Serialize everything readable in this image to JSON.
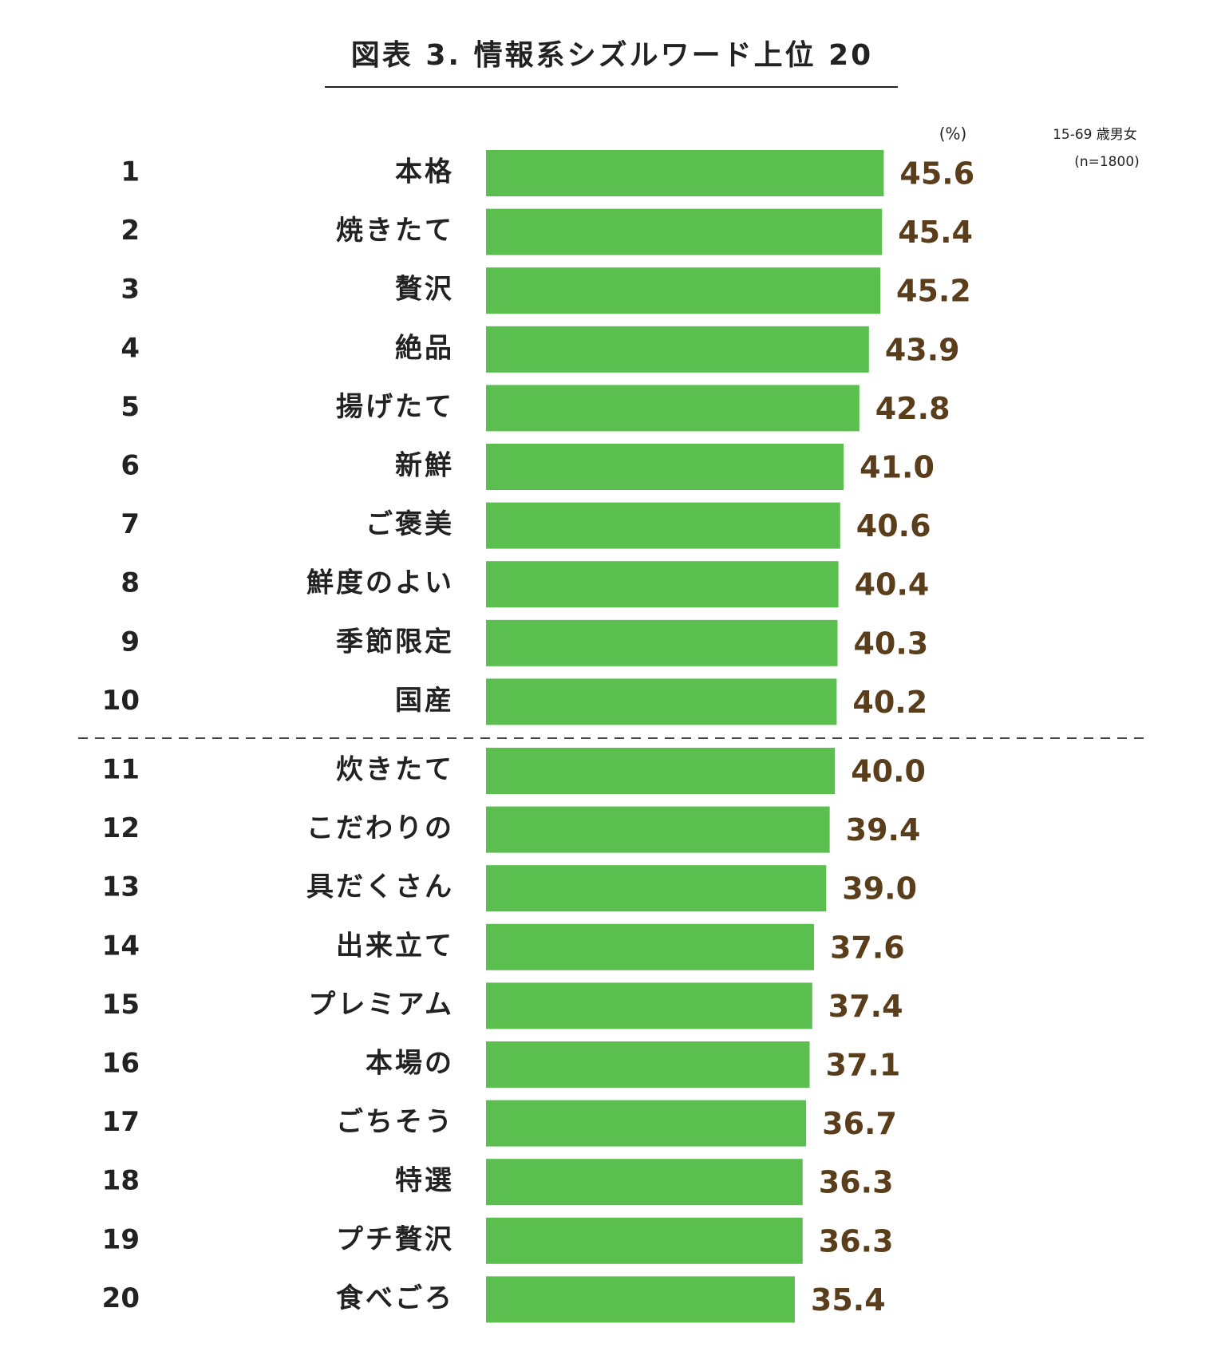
{
  "chart_data": {
    "type": "bar",
    "orientation": "horizontal",
    "title": "図表 3. 情報系シズルワード上位 20",
    "unit": "(%)",
    "notes": [
      "15-69 歳男女",
      "(n=1800)"
    ],
    "ranks": [
      1,
      2,
      3,
      4,
      5,
      6,
      7,
      8,
      9,
      10,
      11,
      12,
      13,
      14,
      15,
      16,
      17,
      18,
      19,
      20
    ],
    "categories": [
      "本格",
      "焼きたて",
      "贅沢",
      "絶品",
      "揚げたて",
      "新鮮",
      "ご褒美",
      "鮮度のよい",
      "季節限定",
      "国産",
      "炊きたて",
      "こだわりの",
      "具だくさん",
      "出来立て",
      "プレミアム",
      "本場の",
      "ごちそう",
      "特選",
      "プチ贅沢",
      "食べごろ"
    ],
    "values": [
      45.6,
      45.4,
      45.2,
      43.9,
      42.8,
      41.0,
      40.6,
      40.4,
      40.3,
      40.2,
      40.0,
      39.4,
      39.0,
      37.6,
      37.4,
      37.1,
      36.7,
      36.3,
      36.3,
      35.4
    ],
    "value_labels": [
      "45.6",
      "45.4",
      "45.2",
      "43.9",
      "42.8",
      "41.0",
      "40.6",
      "40.4",
      "40.3",
      "40.2",
      "40.0",
      "39.4",
      "39.0",
      "37.6",
      "37.4",
      "37.1",
      "36.7",
      "36.3",
      "36.3",
      "35.4"
    ],
    "color": "#5abf4f",
    "label_color": "#5a3e1b",
    "xlim": [
      0,
      50
    ]
  }
}
